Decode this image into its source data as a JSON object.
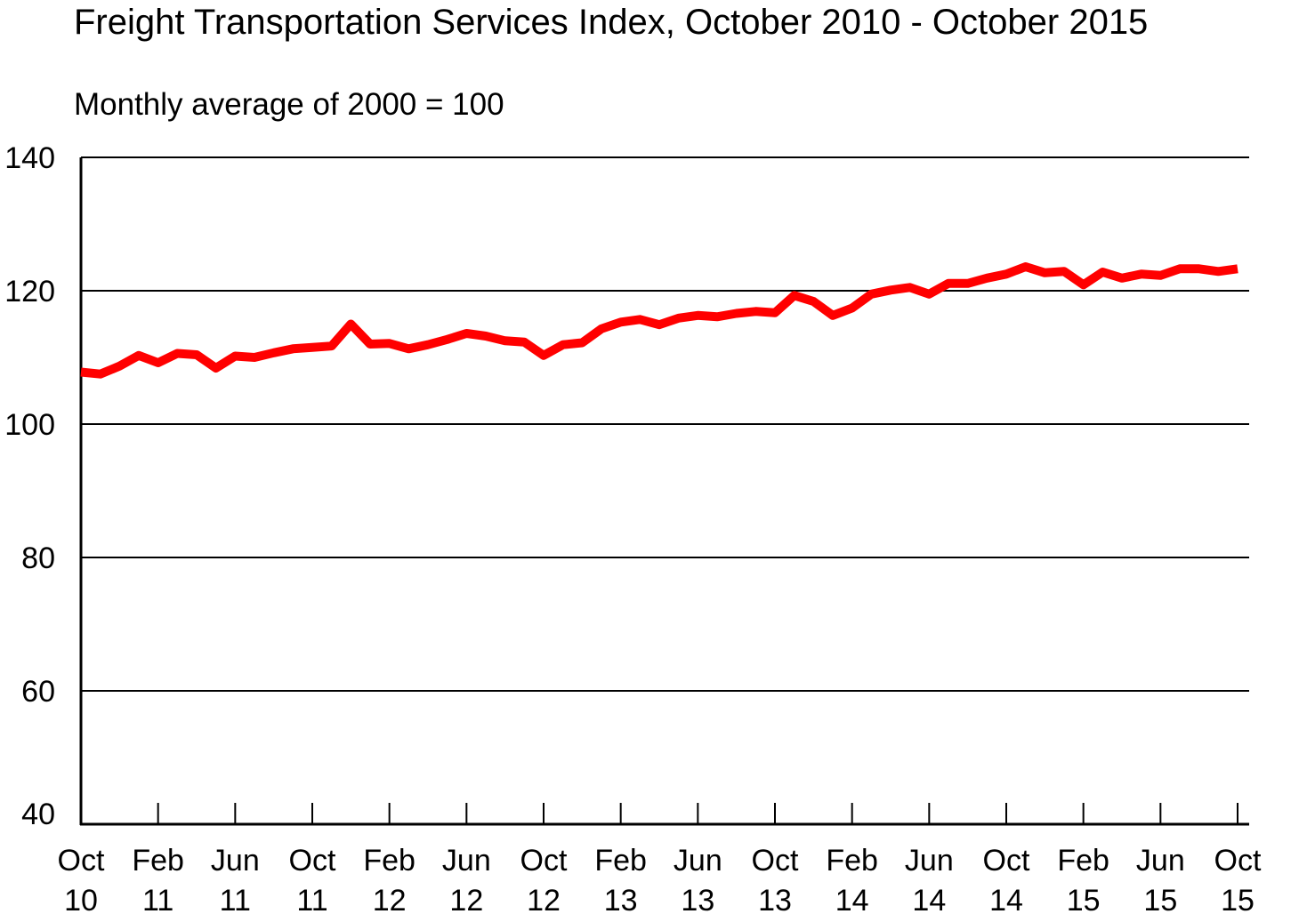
{
  "chart_data": {
    "type": "line",
    "title": "Freight Transportation Services Index, October 2010 - October 2015",
    "subtitle": "Monthly average of 2000 = 100",
    "xlabel": "",
    "ylabel": "",
    "ylim": [
      40,
      140
    ],
    "yticks": [
      140,
      120,
      100,
      80,
      60,
      40
    ],
    "grid": true,
    "legend": "none",
    "line_color": "#ff0000",
    "x_tick_labels": [
      {
        "month": "Oct",
        "year": "10"
      },
      {
        "month": "Feb",
        "year": "11"
      },
      {
        "month": "Jun",
        "year": "11"
      },
      {
        "month": "Oct",
        "year": "11"
      },
      {
        "month": "Feb",
        "year": "12"
      },
      {
        "month": "Jun",
        "year": "12"
      },
      {
        "month": "Oct",
        "year": "12"
      },
      {
        "month": "Feb",
        "year": "13"
      },
      {
        "month": "Jun",
        "year": "13"
      },
      {
        "month": "Oct",
        "year": "13"
      },
      {
        "month": "Feb",
        "year": "14"
      },
      {
        "month": "Jun",
        "year": "14"
      },
      {
        "month": "Oct",
        "year": "14"
      },
      {
        "month": "Feb",
        "year": "15"
      },
      {
        "month": "Jun",
        "year": "15"
      },
      {
        "month": "Oct",
        "year": "15"
      }
    ],
    "series": [
      {
        "values": [
          107.8,
          107.5,
          108.7,
          110.3,
          109.2,
          110.6,
          110.4,
          108.4,
          110.2,
          110.0,
          110.7,
          111.3,
          111.5,
          111.7,
          115.0,
          112.0,
          112.1,
          111.3,
          111.9,
          112.7,
          113.6,
          113.2,
          112.5,
          112.3,
          110.3,
          111.9,
          112.2,
          114.3,
          115.3,
          115.7,
          114.9,
          115.9,
          116.3,
          116.1,
          116.6,
          116.9,
          116.7,
          119.3,
          118.4,
          116.3,
          117.4,
          119.5,
          120.1,
          120.5,
          119.5,
          121.1,
          121.1,
          121.9,
          122.5,
          123.6,
          122.7,
          122.9,
          120.9,
          122.8,
          121.9,
          122.5,
          122.3,
          123.3,
          123.3,
          122.9,
          123.3
        ]
      }
    ]
  }
}
